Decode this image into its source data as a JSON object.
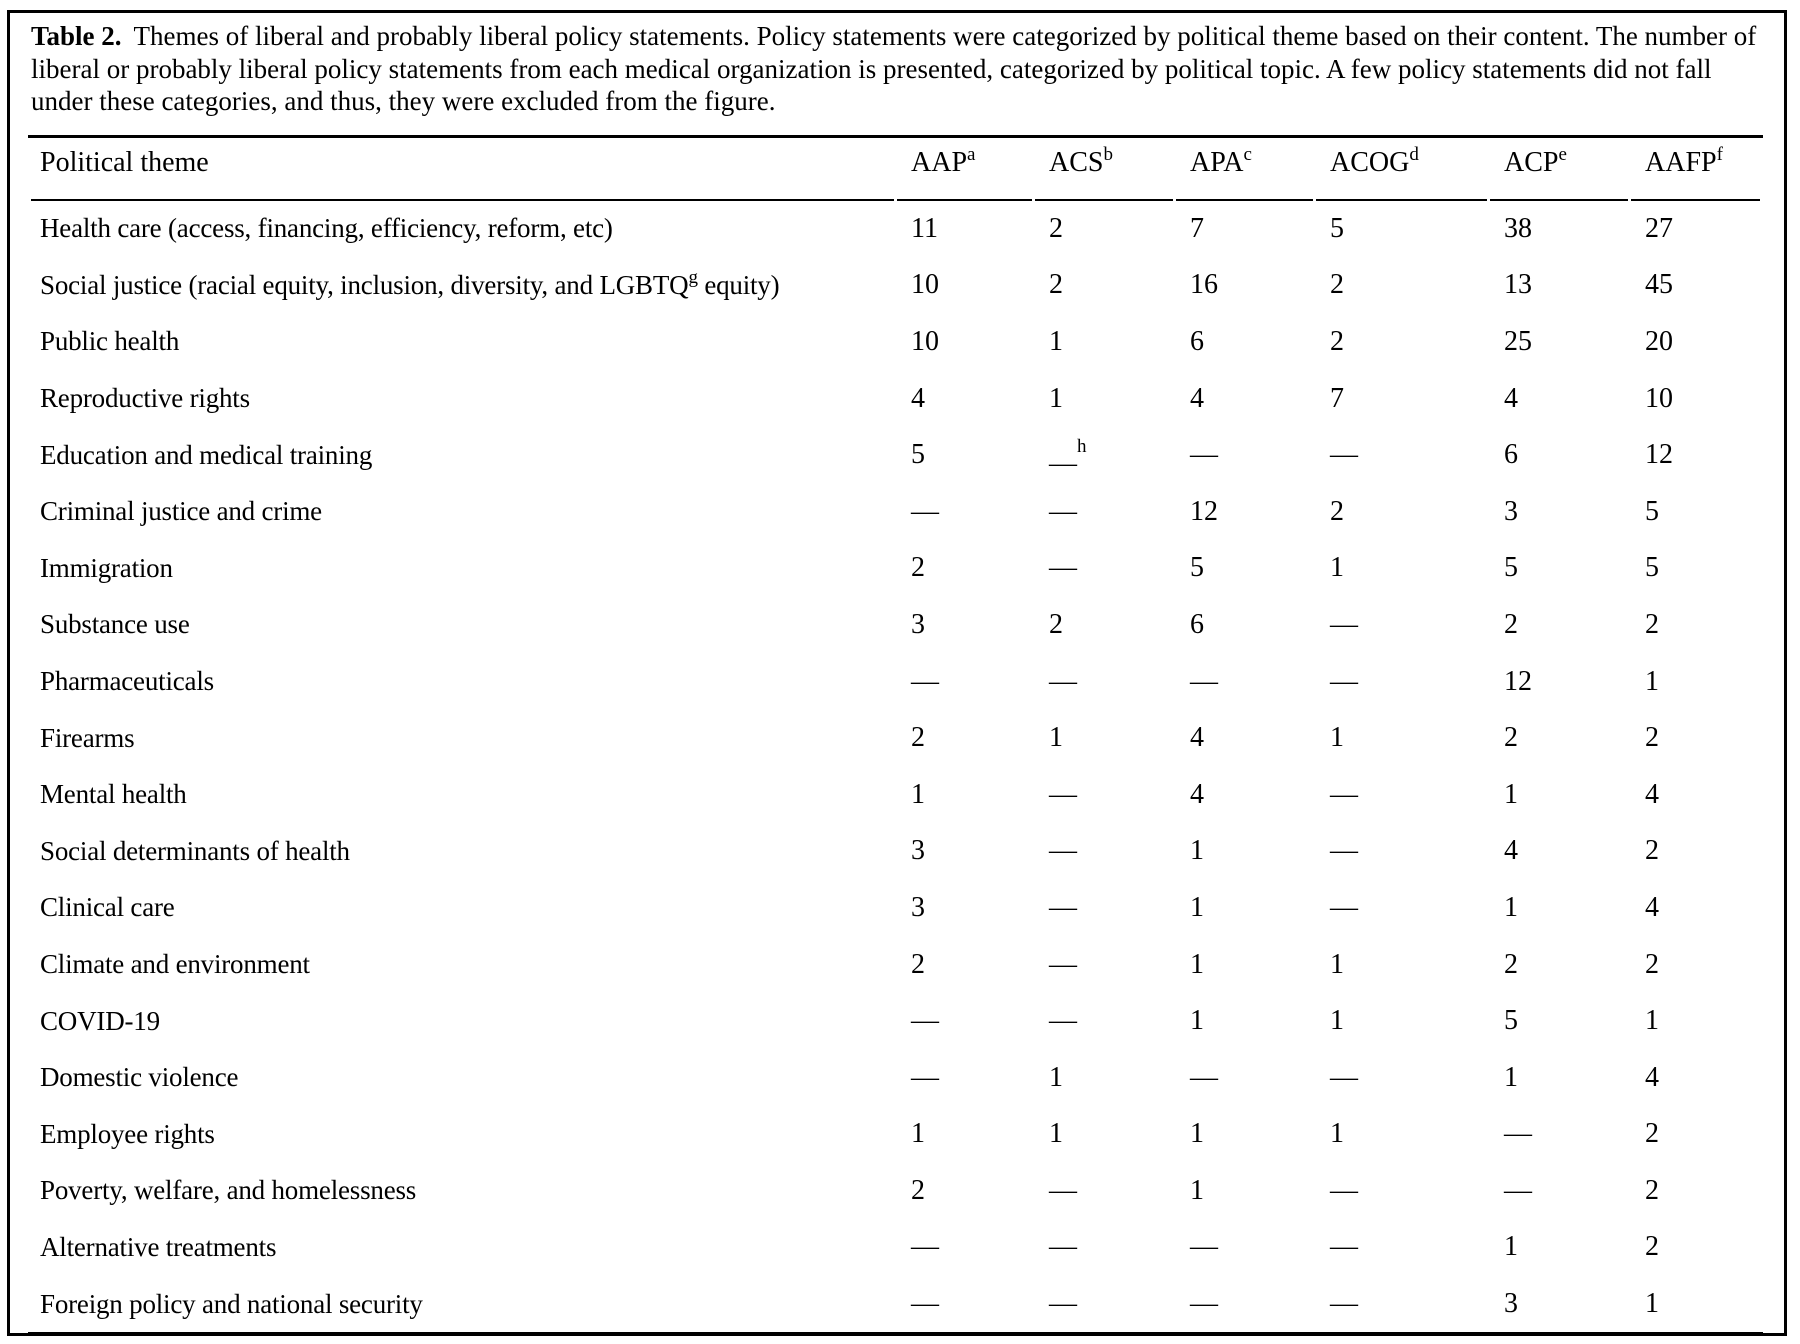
{
  "caption": {
    "label": "Table 2.",
    "text": "Themes of liberal and probably liberal policy statements. Policy statements were categorized by political theme based on their content. The number of liberal or probably liberal policy statements from each medical organization is presented, categorized by political topic. A few policy statements did not fall under these categories, and thus, they were excluded from the figure."
  },
  "table": {
    "columns": [
      "Political theme",
      "AAP^a",
      "ACS^b",
      "APA^c",
      "ACOG^d",
      "ACP^e",
      "AAFP^f"
    ],
    "empty_marker": "—",
    "rows": [
      {
        "theme": "Health care (access, financing, efficiency, reform, etc)",
        "values": [
          "11",
          "2",
          "7",
          "5",
          "38",
          "27"
        ]
      },
      {
        "theme": "Social justice (racial equity, inclusion, diversity, and LGBTQ^g equity)",
        "values": [
          "10",
          "2",
          "16",
          "2",
          "13",
          "45"
        ]
      },
      {
        "theme": "Public health",
        "values": [
          "10",
          "1",
          "6",
          "2",
          "25",
          "20"
        ]
      },
      {
        "theme": "Reproductive rights",
        "values": [
          "4",
          "1",
          "4",
          "7",
          "4",
          "10"
        ]
      },
      {
        "theme": "Education and medical training",
        "values": [
          "5",
          "—^h",
          "—",
          "—",
          "6",
          "12"
        ]
      },
      {
        "theme": "Criminal justice and crime",
        "values": [
          "—",
          "—",
          "12",
          "2",
          "3",
          "5"
        ]
      },
      {
        "theme": "Immigration",
        "values": [
          "2",
          "—",
          "5",
          "1",
          "5",
          "5"
        ]
      },
      {
        "theme": "Substance use",
        "values": [
          "3",
          "2",
          "6",
          "—",
          "2",
          "2"
        ]
      },
      {
        "theme": "Pharmaceuticals",
        "values": [
          "—",
          "—",
          "—",
          "—",
          "12",
          "1"
        ]
      },
      {
        "theme": "Firearms",
        "values": [
          "2",
          "1",
          "4",
          "1",
          "2",
          "2"
        ]
      },
      {
        "theme": "Mental health",
        "values": [
          "1",
          "—",
          "4",
          "—",
          "1",
          "4"
        ]
      },
      {
        "theme": "Social determinants of health",
        "values": [
          "3",
          "—",
          "1",
          "—",
          "4",
          "2"
        ]
      },
      {
        "theme": "Clinical care",
        "values": [
          "3",
          "—",
          "1",
          "—",
          "1",
          "4"
        ]
      },
      {
        "theme": "Climate and environment",
        "values": [
          "2",
          "—",
          "1",
          "1",
          "2",
          "2"
        ]
      },
      {
        "theme": "COVID-19",
        "values": [
          "—",
          "—",
          "1",
          "1",
          "5",
          "1"
        ]
      },
      {
        "theme": "Domestic violence",
        "values": [
          "—",
          "1",
          "—",
          "—",
          "1",
          "4"
        ]
      },
      {
        "theme": "Employee rights",
        "values": [
          "1",
          "1",
          "1",
          "1",
          "—",
          "2"
        ]
      },
      {
        "theme": "Poverty, welfare, and homelessness",
        "values": [
          "2",
          "—",
          "1",
          "—",
          "—",
          "2"
        ]
      },
      {
        "theme": "Alternative treatments",
        "values": [
          "—",
          "—",
          "—",
          "—",
          "1",
          "2"
        ]
      },
      {
        "theme": "Foreign policy and national security",
        "values": [
          "—",
          "—",
          "—",
          "—",
          "3",
          "1"
        ]
      }
    ]
  }
}
